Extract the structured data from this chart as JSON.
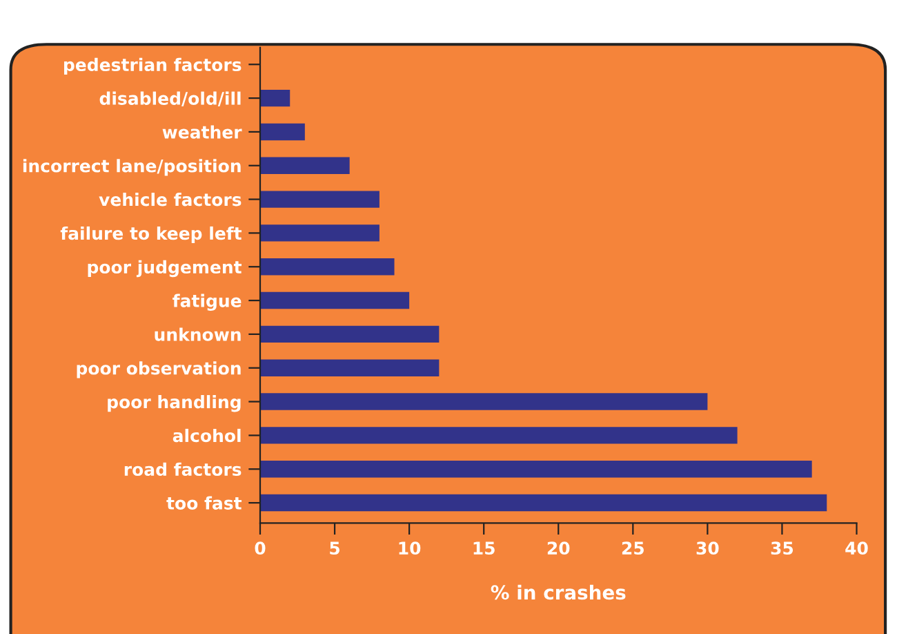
{
  "chart_data": {
    "type": "bar",
    "orientation": "horizontal",
    "xlabel": "% in crashes",
    "categories": [
      "pedestrian factors",
      "disabled/old/ill",
      "weather",
      "incorrect lane/position",
      "vehicle factors",
      "failure to keep left",
      "poor judgement",
      "fatigue",
      "unknown",
      "poor observation",
      "poor handling",
      "alcohol",
      "road factors",
      "too fast"
    ],
    "values": [
      0,
      2,
      3,
      6,
      8,
      8,
      9,
      10,
      12,
      12,
      30,
      32,
      37,
      38
    ],
    "color": "#32338a",
    "xlim": [
      0,
      40
    ],
    "xticks": [
      0,
      5,
      10,
      15,
      20,
      25,
      30,
      35,
      40
    ],
    "grid": false,
    "legend": false
  }
}
